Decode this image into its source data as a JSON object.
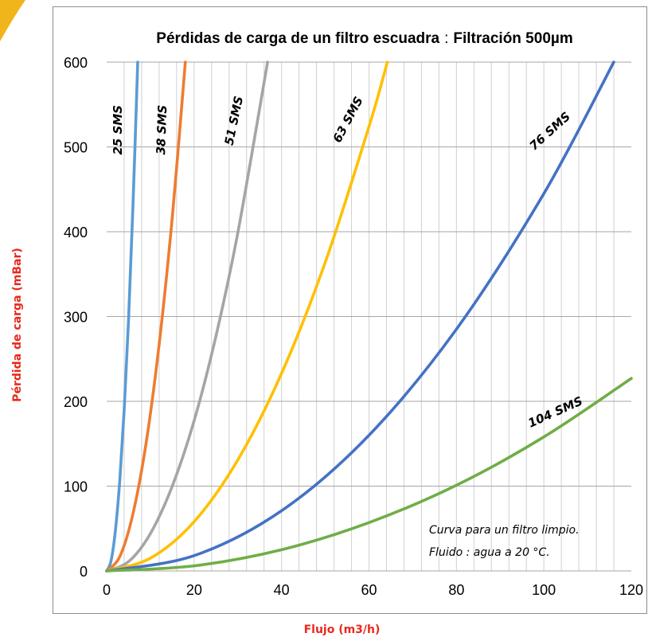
{
  "chart_data": {
    "type": "line",
    "title": "Pérdidas de carga de un filtro escuadra",
    "title_sep": ":",
    "subtitle": "Filtración 500µm",
    "xlabel": "Flujo (m3/h)",
    "ylabel": "Pérdida de carga (mBar)",
    "xlim": [
      0,
      120
    ],
    "ylim": [
      0,
      600
    ],
    "x_ticks": [
      0,
      20,
      40,
      60,
      80,
      100,
      120
    ],
    "y_ticks": [
      0,
      100,
      200,
      300,
      400,
      500,
      600
    ],
    "grid": "vertical every 4, horizontal every 100",
    "legend": "inline labels on curves",
    "series": [
      {
        "name": "25 SMS",
        "color": "#5b9bd5",
        "x": [
          0,
          1,
          2,
          3,
          4,
          5,
          6,
          7.1
        ],
        "y": [
          0,
          12,
          48,
          107,
          190,
          297,
          428,
          600
        ]
      },
      {
        "name": "38 SMS",
        "color": "#ed7d31",
        "x": [
          0,
          3,
          6,
          9,
          12,
          15,
          18
        ],
        "y": [
          0,
          17,
          67,
          150,
          267,
          417,
          600
        ]
      },
      {
        "name": "51 SMS",
        "color": "#a5a5a5",
        "x": [
          0,
          5,
          10,
          15,
          20,
          25,
          30,
          36.8
        ],
        "y": [
          0,
          11,
          44,
          100,
          177,
          277,
          399,
          600
        ]
      },
      {
        "name": "63 SMS",
        "color": "#ffc000",
        "x": [
          0,
          10,
          20,
          30,
          40,
          50,
          60,
          64.2
        ],
        "y": [
          0,
          15,
          58,
          131,
          233,
          364,
          524,
          600
        ]
      },
      {
        "name": "76 SMS",
        "color": "#4472c4",
        "x": [
          0,
          20,
          40,
          60,
          80,
          100,
          116
        ],
        "y": [
          0,
          18,
          71,
          160,
          285,
          445,
          600
        ]
      },
      {
        "name": "104 SMS",
        "color": "#70ad47",
        "x": [
          0,
          20,
          40,
          60,
          80,
          100,
          120
        ],
        "y": [
          0,
          6,
          25,
          57,
          101,
          158,
          227
        ]
      }
    ],
    "annotations": [
      "Curva para un filtro limpio.",
      "Fluido : agua a 20 °C."
    ]
  }
}
